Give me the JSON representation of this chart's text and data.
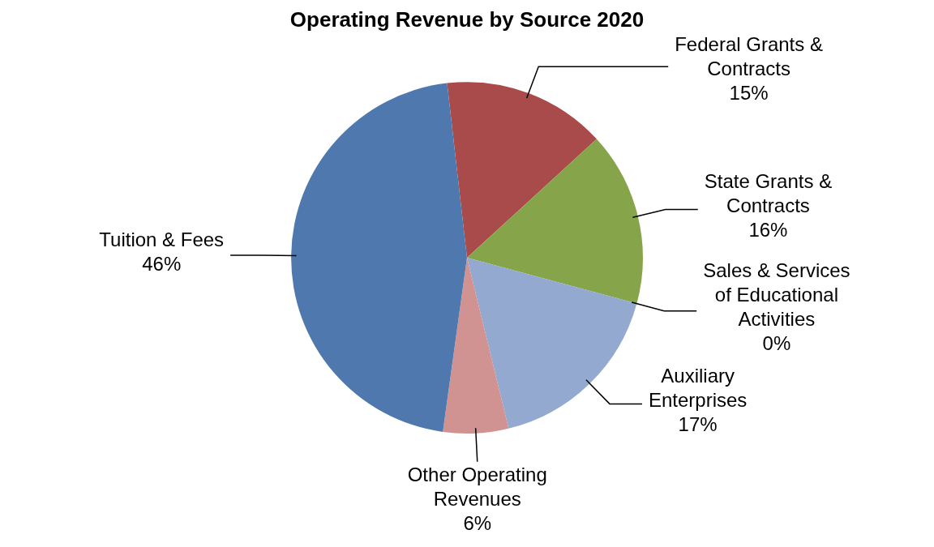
{
  "chart_data": {
    "type": "pie",
    "title": "Operating Revenue by Source 2020",
    "categories": [
      "Federal Grants & Contracts",
      "State Grants & Contracts",
      "Sales & Services of Educational Activities",
      "Auxiliary Enterprises",
      "Other Operating Revenues",
      "Tuition & Fees"
    ],
    "values": [
      15,
      16,
      0,
      17,
      6,
      46
    ],
    "value_labels": [
      "15%",
      "16%",
      "0%",
      "17%",
      "6%",
      "46%"
    ],
    "colors": [
      "#a84b4a",
      "#86a44a",
      "#e8883a",
      "#93a9cf",
      "#d19392",
      "#4f79ae"
    ]
  }
}
